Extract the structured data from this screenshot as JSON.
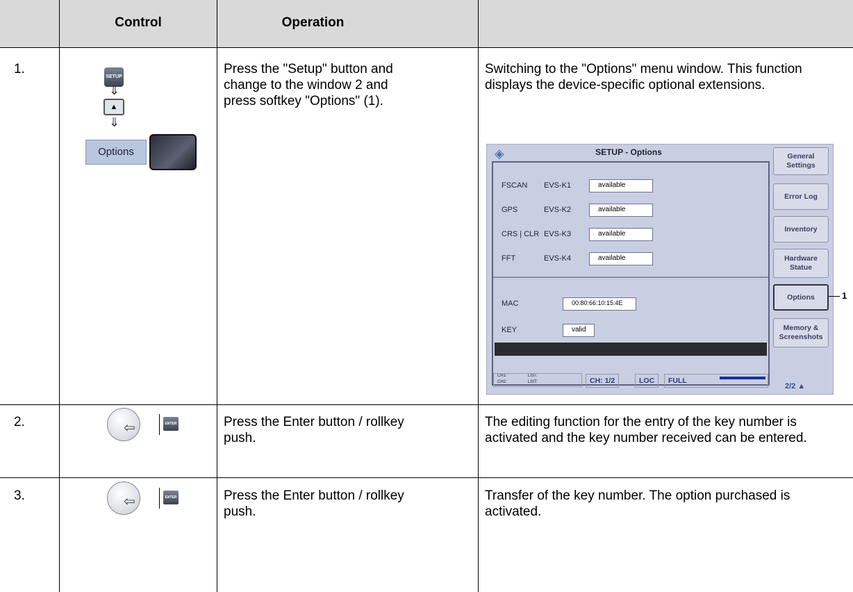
{
  "table": {
    "header": [
      "Control",
      "Operation"
    ],
    "rows": [
      {
        "step": "1.",
        "operation": "Press the \"Setup\" button and change to the window 2 and press softkey \"Options\" (1).",
        "description": "Switching to the \"Options\" menu window. This function displays the device-specific optional extensions.",
        "setup_button": "SETUP",
        "options_label": "Options"
      },
      {
        "step": "2.",
        "operation": "Press the Enter button / rollkey push.",
        "description": "The editing function for the entry of the key number is activated and the key number received can be entered.",
        "enter_button": "ENTER"
      },
      {
        "step": "3.",
        "operation": "Press the Enter button / rollkey push.",
        "description": "Transfer of the key number. The option purchased is activated.",
        "enter_button": "ENTER"
      }
    ]
  },
  "screen": {
    "title": "SETUP - Options",
    "options": [
      {
        "name": "FSCAN",
        "code": "EVS-K1",
        "status": "available"
      },
      {
        "name": "GPS",
        "code": "EVS-K2",
        "status": "available"
      },
      {
        "name": "CRS | CLR",
        "code": "EVS-K3",
        "status": "available"
      },
      {
        "name": "FFT",
        "code": "EVS-K4",
        "status": "available"
      }
    ],
    "mac_label": "MAC",
    "mac": "00:80:66:10:15:4E",
    "key_label": "KEY",
    "key": "valid",
    "softkeys": [
      "General Settings",
      "Error Log",
      "Inventory",
      "Hardware Statue",
      "Options",
      "Memory & Screenshots"
    ],
    "callout": "1",
    "status_left": [
      "CH1:",
      "LIST:",
      "CH2:",
      "LIST:"
    ],
    "channel": "CH: 1/2",
    "loc": "LOC",
    "full": "FULL",
    "page": "2/2 ▲"
  }
}
